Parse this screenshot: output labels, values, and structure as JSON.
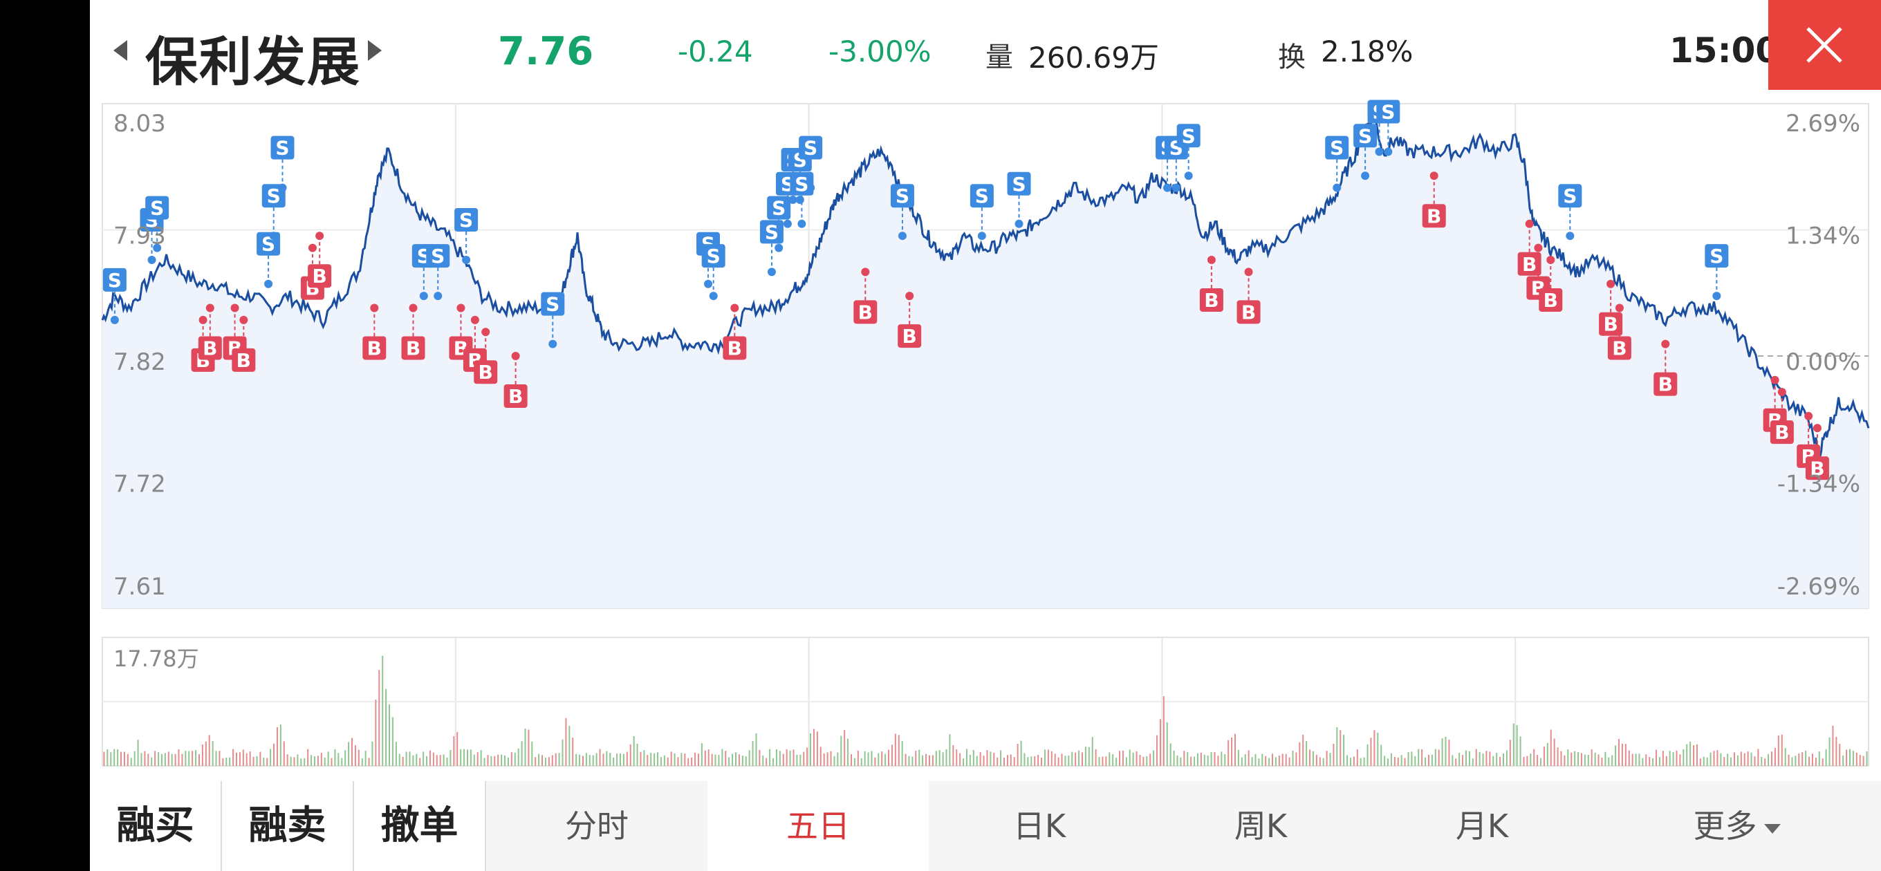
{
  "header": {
    "stock_name": "保利发展",
    "price": "7.76",
    "change": "-0.24",
    "change_pct": "-3.00%",
    "volume_label": "量",
    "volume_value": "260.69万",
    "turnover_label": "换",
    "turnover_value": "2.18%",
    "time": "15:00"
  },
  "colors": {
    "down": "#14a36a",
    "up": "#d9363a",
    "line": "#1a4ea0",
    "buy_marker": "#e0475a",
    "sell_marker": "#3d8be0",
    "close": "#e9423c"
  },
  "chart_data": {
    "type": "line",
    "period": "五日",
    "days": 5,
    "prev_close": 7.82,
    "y_ticks_price": [
      "8.03",
      "7.93",
      "7.82",
      "7.72",
      "7.61"
    ],
    "y_ticks_pct": [
      "2.69%",
      "1.34%",
      "0.00%",
      "-1.34%",
      "-2.69%"
    ],
    "ylim": [
      7.61,
      8.03
    ],
    "volume_max_label": "17.78万",
    "price_points": [
      [
        0,
        7.85
      ],
      [
        0.7,
        7.87
      ],
      [
        1.5,
        7.86
      ],
      [
        2.5,
        7.88
      ],
      [
        3.5,
        7.9
      ],
      [
        4.5,
        7.89
      ],
      [
        5.5,
        7.88
      ],
      [
        6.5,
        7.88
      ],
      [
        7.5,
        7.87
      ],
      [
        8.5,
        7.87
      ],
      [
        9.5,
        7.86
      ],
      [
        10.5,
        7.87
      ],
      [
        11.5,
        7.86
      ],
      [
        12.5,
        7.85
      ],
      [
        13.5,
        7.87
      ],
      [
        14.5,
        7.89
      ],
      [
        15.2,
        7.94
      ],
      [
        15.6,
        7.97
      ],
      [
        16.2,
        7.99
      ],
      [
        17,
        7.96
      ],
      [
        17.8,
        7.94
      ],
      [
        18.6,
        7.93
      ],
      [
        19.5,
        7.92
      ],
      [
        20.5,
        7.9
      ],
      [
        21.5,
        7.87
      ],
      [
        22.5,
        7.86
      ],
      [
        23.5,
        7.86
      ],
      [
        24.5,
        7.86
      ],
      [
        25.5,
        7.86
      ],
      [
        26,
        7.87
      ],
      [
        26.5,
        7.9
      ],
      [
        26.9,
        7.92
      ],
      [
        27.3,
        7.88
      ],
      [
        27.8,
        7.86
      ],
      [
        28.3,
        7.84
      ],
      [
        29,
        7.83
      ],
      [
        30,
        7.83
      ],
      [
        31,
        7.83
      ],
      [
        32,
        7.84
      ],
      [
        33,
        7.83
      ],
      [
        34,
        7.83
      ],
      [
        35,
        7.83
      ],
      [
        36,
        7.85
      ],
      [
        37,
        7.86
      ],
      [
        38,
        7.86
      ],
      [
        38.8,
        7.87
      ],
      [
        39.5,
        7.88
      ],
      [
        40,
        7.89
      ],
      [
        40.5,
        7.91
      ],
      [
        41,
        7.93
      ],
      [
        41.5,
        7.95
      ],
      [
        42,
        7.96
      ],
      [
        42.7,
        7.97
      ],
      [
        43.3,
        7.98
      ],
      [
        44,
        7.99
      ],
      [
        44.7,
        7.98
      ],
      [
        45.3,
        7.95
      ],
      [
        46,
        7.94
      ],
      [
        46.7,
        7.92
      ],
      [
        47.3,
        7.91
      ],
      [
        48,
        7.9
      ],
      [
        48.7,
        7.92
      ],
      [
        49.5,
        7.91
      ],
      [
        50.5,
        7.91
      ],
      [
        51.3,
        7.92
      ],
      [
        52,
        7.92
      ],
      [
        52.7,
        7.93
      ],
      [
        53.5,
        7.94
      ],
      [
        54.3,
        7.95
      ],
      [
        55,
        7.96
      ],
      [
        56,
        7.95
      ],
      [
        57,
        7.95
      ],
      [
        58,
        7.96
      ],
      [
        58.8,
        7.95
      ],
      [
        59.5,
        7.97
      ],
      [
        60.3,
        7.96
      ],
      [
        61,
        7.96
      ],
      [
        61.7,
        7.95
      ],
      [
        62.3,
        7.92
      ],
      [
        63,
        7.93
      ],
      [
        63.7,
        7.91
      ],
      [
        64.3,
        7.9
      ],
      [
        65,
        7.91
      ],
      [
        66,
        7.91
      ],
      [
        67,
        7.92
      ],
      [
        68,
        7.93
      ],
      [
        69,
        7.94
      ],
      [
        69.7,
        7.95
      ],
      [
        70.3,
        7.97
      ],
      [
        71,
        7.99
      ],
      [
        71.5,
        8.01
      ],
      [
        72,
        8.02
      ],
      [
        72.5,
        7.99
      ],
      [
        73.2,
        8.0
      ],
      [
        74,
        7.99
      ],
      [
        75,
        7.99
      ],
      [
        76,
        7.99
      ],
      [
        77,
        7.99
      ],
      [
        78,
        8.0
      ],
      [
        79,
        7.99
      ],
      [
        80,
        8.0
      ],
      [
        80.5,
        7.98
      ],
      [
        81,
        7.93
      ],
      [
        81.5,
        7.92
      ],
      [
        82,
        7.91
      ],
      [
        82.8,
        7.9
      ],
      [
        83.5,
        7.89
      ],
      [
        84.5,
        7.9
      ],
      [
        85.5,
        7.89
      ],
      [
        86.5,
        7.87
      ],
      [
        87.5,
        7.86
      ],
      [
        88.5,
        7.85
      ],
      [
        89.5,
        7.86
      ],
      [
        90.5,
        7.86
      ],
      [
        91.5,
        7.86
      ],
      [
        92.5,
        7.84
      ],
      [
        93.5,
        7.82
      ],
      [
        94.5,
        7.8
      ],
      [
        95.5,
        7.78
      ],
      [
        96.5,
        7.77
      ],
      [
        97.2,
        7.74
      ],
      [
        97.7,
        7.76
      ],
      [
        98.3,
        7.78
      ],
      [
        99,
        7.78
      ],
      [
        100,
        7.76
      ]
    ],
    "volume_points": [
      [
        2,
        0.15
      ],
      [
        6,
        0.25
      ],
      [
        10,
        0.35
      ],
      [
        14,
        0.2
      ],
      [
        15.8,
        1.0
      ],
      [
        16.2,
        0.55
      ],
      [
        20,
        0.25
      ],
      [
        24,
        0.3
      ],
      [
        26.3,
        0.35
      ],
      [
        30,
        0.2
      ],
      [
        34,
        0.15
      ],
      [
        37,
        0.2
      ],
      [
        40.3,
        0.3
      ],
      [
        42,
        0.25
      ],
      [
        45,
        0.3
      ],
      [
        48,
        0.2
      ],
      [
        52,
        0.15
      ],
      [
        56,
        0.2
      ],
      [
        60,
        0.25
      ],
      [
        60.1,
        0.5
      ],
      [
        64,
        0.25
      ],
      [
        68,
        0.2
      ],
      [
        70,
        0.35
      ],
      [
        72,
        0.3
      ],
      [
        76,
        0.25
      ],
      [
        80,
        0.35
      ],
      [
        82,
        0.25
      ],
      [
        86,
        0.2
      ],
      [
        90,
        0.2
      ],
      [
        95,
        0.25
      ],
      [
        98,
        0.3
      ]
    ],
    "markers": [
      {
        "type": "S",
        "x": 0.7,
        "price": 7.85
      },
      {
        "type": "S",
        "x": 2.8,
        "price": 7.9
      },
      {
        "type": "S",
        "x": 3.1,
        "price": 7.91
      },
      {
        "type": "B",
        "x": 5.7,
        "price": 7.85
      },
      {
        "type": "B",
        "x": 6.1,
        "price": 7.86
      },
      {
        "type": "B",
        "x": 7.5,
        "price": 7.86
      },
      {
        "type": "B",
        "x": 8.0,
        "price": 7.85
      },
      {
        "type": "S",
        "x": 9.4,
        "price": 7.88
      },
      {
        "type": "S",
        "x": 9.7,
        "price": 7.92
      },
      {
        "type": "S",
        "x": 10.2,
        "price": 7.96
      },
      {
        "type": "B",
        "x": 11.9,
        "price": 7.91
      },
      {
        "type": "B",
        "x": 12.3,
        "price": 7.92
      },
      {
        "type": "B",
        "x": 15.4,
        "price": 7.86
      },
      {
        "type": "S",
        "x": 18.2,
        "price": 7.87
      },
      {
        "type": "S",
        "x": 19.0,
        "price": 7.87
      },
      {
        "type": "S",
        "x": 20.6,
        "price": 7.9
      },
      {
        "type": "B",
        "x": 17.6,
        "price": 7.86
      },
      {
        "type": "B",
        "x": 20.3,
        "price": 7.86
      },
      {
        "type": "B",
        "x": 21.1,
        "price": 7.85
      },
      {
        "type": "B",
        "x": 21.7,
        "price": 7.84
      },
      {
        "type": "B",
        "x": 23.4,
        "price": 7.82
      },
      {
        "type": "S",
        "x": 25.5,
        "price": 7.83
      },
      {
        "type": "S",
        "x": 34.3,
        "price": 7.88
      },
      {
        "type": "S",
        "x": 34.6,
        "price": 7.87
      },
      {
        "type": "B",
        "x": 35.8,
        "price": 7.86
      },
      {
        "type": "S",
        "x": 37.9,
        "price": 7.89
      },
      {
        "type": "S",
        "x": 38.3,
        "price": 7.91
      },
      {
        "type": "S",
        "x": 38.8,
        "price": 7.93
      },
      {
        "type": "S",
        "x": 39.1,
        "price": 7.95
      },
      {
        "type": "S",
        "x": 39.5,
        "price": 7.95
      },
      {
        "type": "S",
        "x": 40.1,
        "price": 7.96
      },
      {
        "type": "S",
        "x": 39.6,
        "price": 7.93
      },
      {
        "type": "B",
        "x": 43.2,
        "price": 7.89
      },
      {
        "type": "B",
        "x": 45.7,
        "price": 7.87
      },
      {
        "type": "S",
        "x": 45.3,
        "price": 7.92
      },
      {
        "type": "S",
        "x": 49.8,
        "price": 7.92
      },
      {
        "type": "S",
        "x": 51.9,
        "price": 7.93
      },
      {
        "type": "S",
        "x": 60.3,
        "price": 7.96
      },
      {
        "type": "S",
        "x": 60.8,
        "price": 7.96
      },
      {
        "type": "S",
        "x": 61.5,
        "price": 7.97
      },
      {
        "type": "B",
        "x": 62.8,
        "price": 7.9
      },
      {
        "type": "B",
        "x": 64.9,
        "price": 7.89
      },
      {
        "type": "S",
        "x": 69.9,
        "price": 7.96
      },
      {
        "type": "S",
        "x": 71.5,
        "price": 7.97
      },
      {
        "type": "S",
        "x": 72.3,
        "price": 7.99
      },
      {
        "type": "S",
        "x": 72.8,
        "price": 7.99
      },
      {
        "type": "B",
        "x": 75.4,
        "price": 7.97
      },
      {
        "type": "B",
        "x": 80.8,
        "price": 7.93
      },
      {
        "type": "B",
        "x": 81.3,
        "price": 7.91
      },
      {
        "type": "B",
        "x": 82.0,
        "price": 7.9
      },
      {
        "type": "S",
        "x": 83.1,
        "price": 7.92
      },
      {
        "type": "B",
        "x": 85.4,
        "price": 7.88
      },
      {
        "type": "B",
        "x": 85.9,
        "price": 7.86
      },
      {
        "type": "B",
        "x": 88.5,
        "price": 7.83
      },
      {
        "type": "S",
        "x": 91.4,
        "price": 7.87
      },
      {
        "type": "B",
        "x": 94.7,
        "price": 7.8
      },
      {
        "type": "B",
        "x": 95.1,
        "price": 7.79
      },
      {
        "type": "B",
        "x": 96.6,
        "price": 7.77
      },
      {
        "type": "B",
        "x": 97.1,
        "price": 7.76
      }
    ]
  },
  "actions": {
    "margin_buy": "融买",
    "margin_sell": "融卖",
    "cancel_order": "撤单"
  },
  "tabs": {
    "intraday": "分时",
    "five_day": "五日",
    "daily_k": "日K",
    "weekly_k": "周K",
    "monthly_k": "月K",
    "more": "更多"
  }
}
